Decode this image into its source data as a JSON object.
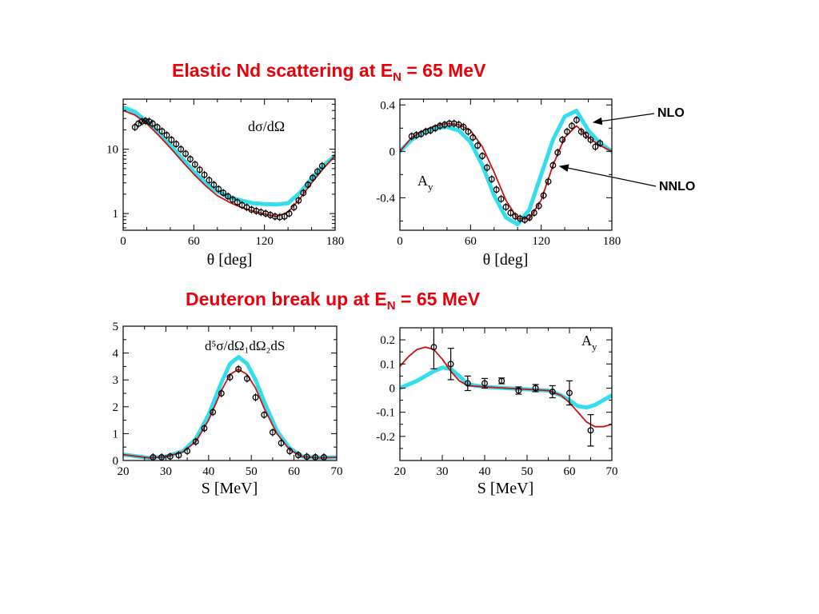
{
  "titles": {
    "elastic": {
      "text": "Elastic Nd scattering at E",
      "sub": "N",
      "rest": " = 65 MeV"
    },
    "breakup": {
      "text": "Deuteron break up at E",
      "sub": "N",
      "rest": " = 65 MeV"
    }
  },
  "annotations": {
    "nlo": "NLO",
    "nnlo": "NNLO"
  },
  "colors": {
    "nlo_band": "#33ddee",
    "nnlo_curve": "#cc1111",
    "data": "#000000",
    "title": "#e8000b"
  },
  "chart_data": [
    {
      "type": "line",
      "panel": "elastic-cross-section",
      "label": "dσ/dΩ",
      "xlabel": "θ  [deg]",
      "xlim": [
        0,
        180
      ],
      "ylim": [
        0.55,
        60
      ],
      "yscale": "log",
      "xticks": [
        0,
        60,
        120,
        180
      ],
      "yticks": [
        1,
        10
      ],
      "series": [
        {
          "name": "NLO",
          "style": "band",
          "x": [
            0,
            10,
            20,
            30,
            40,
            50,
            60,
            70,
            80,
            90,
            100,
            110,
            120,
            130,
            140,
            150,
            160,
            170,
            180
          ],
          "y": [
            45,
            38,
            27,
            18,
            11.5,
            7.2,
            4.5,
            3,
            2.2,
            1.8,
            1.6,
            1.45,
            1.4,
            1.38,
            1.45,
            2.1,
            3.5,
            5.5,
            8
          ]
        },
        {
          "name": "NNLO",
          "style": "line",
          "x": [
            0,
            10,
            20,
            30,
            40,
            50,
            60,
            70,
            80,
            90,
            100,
            110,
            120,
            130,
            140,
            150,
            160,
            170,
            180
          ],
          "y": [
            40,
            34,
            25,
            16.5,
            10.5,
            6.5,
            4.1,
            2.7,
            1.9,
            1.5,
            1.25,
            1.1,
            0.98,
            0.9,
            1.05,
            1.7,
            3,
            5,
            8
          ]
        },
        {
          "name": "data",
          "style": "points",
          "x": [
            10,
            13,
            16,
            19,
            22,
            25,
            29,
            33,
            37,
            41,
            45,
            49,
            53,
            57,
            61,
            65,
            69,
            73,
            77,
            81,
            85,
            89,
            93,
            97,
            101,
            105,
            109,
            113,
            117,
            121,
            125,
            129,
            133,
            137,
            141,
            145,
            149,
            153,
            157,
            161,
            165,
            169
          ],
          "y": [
            22,
            25,
            27,
            27.5,
            27,
            25,
            22,
            19,
            16.5,
            14,
            12,
            10,
            8.5,
            7,
            5.8,
            4.8,
            4,
            3.3,
            2.8,
            2.4,
            2.1,
            1.85,
            1.65,
            1.5,
            1.35,
            1.25,
            1.15,
            1.1,
            1.05,
            1,
            0.95,
            0.9,
            0.88,
            0.9,
            1,
            1.25,
            1.6,
            2.1,
            2.8,
            3.6,
            4.5,
            5.5
          ]
        }
      ]
    },
    {
      "type": "line",
      "panel": "elastic-analyzing-power",
      "label": "A",
      "label_sub": "y",
      "xlabel": "θ  [deg]",
      "xlim": [
        0,
        180
      ],
      "ylim": [
        -0.68,
        0.45
      ],
      "xticks": [
        0,
        60,
        120,
        180
      ],
      "yticks": [
        -0.4,
        0,
        0.4
      ],
      "series": [
        {
          "name": "NLO",
          "style": "band",
          "x": [
            0,
            10,
            20,
            30,
            40,
            50,
            60,
            70,
            80,
            90,
            100,
            110,
            120,
            130,
            140,
            150,
            160,
            170,
            180
          ],
          "y": [
            0,
            0.1,
            0.16,
            0.2,
            0.21,
            0.18,
            0.08,
            -0.12,
            -0.38,
            -0.57,
            -0.63,
            -0.5,
            -0.2,
            0.1,
            0.3,
            0.35,
            0.18,
            0.07,
            0
          ]
        },
        {
          "name": "NNLO",
          "style": "line",
          "x": [
            0,
            10,
            20,
            30,
            40,
            50,
            60,
            70,
            80,
            90,
            100,
            110,
            120,
            130,
            140,
            150,
            160,
            170,
            180
          ],
          "y": [
            0,
            0.12,
            0.18,
            0.22,
            0.24,
            0.23,
            0.18,
            0.04,
            -0.18,
            -0.42,
            -0.58,
            -0.58,
            -0.42,
            -0.12,
            0.12,
            0.22,
            0.12,
            0.05,
            0
          ]
        },
        {
          "name": "data",
          "style": "points",
          "x": [
            10,
            14,
            18,
            22,
            26,
            30,
            34,
            38,
            42,
            46,
            50,
            54,
            58,
            62,
            66,
            70,
            74,
            78,
            82,
            86,
            90,
            94,
            98,
            102,
            106,
            110,
            114,
            118,
            122,
            126,
            130,
            134,
            138,
            142,
            146,
            150,
            154,
            158,
            162,
            166,
            170
          ],
          "y": [
            0.13,
            0.14,
            0.15,
            0.17,
            0.18,
            0.2,
            0.22,
            0.23,
            0.24,
            0.24,
            0.23,
            0.21,
            0.17,
            0.12,
            0.05,
            -0.04,
            -0.14,
            -0.24,
            -0.33,
            -0.41,
            -0.48,
            -0.53,
            -0.56,
            -0.58,
            -0.59,
            -0.57,
            -0.53,
            -0.47,
            -0.38,
            -0.26,
            -0.12,
            -0.01,
            0.1,
            0.17,
            0.22,
            0.27,
            0.17,
            0.14,
            0.1,
            0.04,
            0.07
          ]
        }
      ]
    },
    {
      "type": "line",
      "panel": "breakup-cross-section",
      "label": "d⁵σ/dΩ₁dΩ₂dS",
      "xlabel": "S [MeV]",
      "xlim": [
        20,
        70
      ],
      "ylim": [
        0,
        5
      ],
      "xticks": [
        20,
        30,
        40,
        50,
        60,
        70
      ],
      "yticks": [
        0,
        1,
        2,
        3,
        4,
        5
      ],
      "series": [
        {
          "name": "NLO",
          "style": "band",
          "x": [
            20,
            26,
            30,
            34,
            37,
            40,
            43,
            45,
            47,
            49,
            51,
            53,
            56,
            59,
            62,
            66,
            70
          ],
          "y": [
            0.22,
            0.1,
            0.15,
            0.35,
            0.8,
            1.7,
            2.9,
            3.6,
            3.85,
            3.6,
            3.0,
            2.2,
            1.1,
            0.45,
            0.15,
            0.1,
            0.12
          ]
        },
        {
          "name": "NNLO",
          "style": "line",
          "x": [
            20,
            26,
            30,
            34,
            37,
            40,
            43,
            45,
            47,
            49,
            51,
            53,
            56,
            59,
            62,
            66,
            70
          ],
          "y": [
            0.22,
            0.1,
            0.14,
            0.32,
            0.7,
            1.5,
            2.6,
            3.2,
            3.4,
            3.2,
            2.7,
            1.95,
            1.0,
            0.4,
            0.14,
            0.1,
            0.12
          ]
        },
        {
          "name": "data",
          "style": "points",
          "x": [
            27,
            29,
            31,
            33,
            35,
            37,
            39,
            41,
            43,
            45,
            47,
            49,
            51,
            53,
            55,
            57,
            59,
            61,
            63,
            65,
            67
          ],
          "y": [
            0.12,
            0.12,
            0.15,
            0.2,
            0.35,
            0.7,
            1.2,
            1.8,
            2.5,
            3.1,
            3.4,
            3.05,
            2.35,
            1.7,
            1.05,
            0.65,
            0.35,
            0.2,
            0.14,
            0.12,
            0.12
          ]
        }
      ]
    },
    {
      "type": "line",
      "panel": "breakup-analyzing-power",
      "label": "A",
      "label_sub": "y",
      "xlabel": "S [MeV]",
      "xlim": [
        20,
        70
      ],
      "ylim": [
        -0.3,
        0.25
      ],
      "xticks": [
        20,
        30,
        40,
        50,
        60,
        70
      ],
      "yticks": [
        -0.2,
        -0.1,
        0,
        0.1,
        0.2
      ],
      "series": [
        {
          "name": "NLO",
          "style": "band",
          "x": [
            20,
            24,
            28,
            30,
            32,
            34,
            36,
            40,
            45,
            50,
            55,
            58,
            60,
            62,
            64,
            66,
            68,
            70
          ],
          "y": [
            0,
            0.03,
            0.07,
            0.085,
            0.08,
            0.05,
            0.015,
            0.005,
            0,
            -0.005,
            -0.01,
            -0.03,
            -0.05,
            -0.075,
            -0.08,
            -0.07,
            -0.05,
            -0.03
          ]
        },
        {
          "name": "NNLO",
          "style": "line",
          "x": [
            20,
            22,
            24,
            26,
            28,
            30,
            32,
            34,
            36,
            40,
            45,
            50,
            55,
            58,
            60,
            62,
            64,
            66,
            68,
            70
          ],
          "y": [
            0.09,
            0.13,
            0.16,
            0.17,
            0.16,
            0.12,
            0.07,
            0.03,
            0.01,
            0.005,
            0,
            -0.005,
            -0.01,
            -0.03,
            -0.06,
            -0.1,
            -0.14,
            -0.16,
            -0.16,
            -0.15
          ]
        },
        {
          "name": "data",
          "style": "points",
          "x": [
            28,
            32,
            36,
            40,
            44,
            48,
            52,
            56,
            60,
            65
          ],
          "y": [
            0.17,
            0.1,
            0.02,
            0.02,
            0.03,
            -0.01,
            0,
            -0.015,
            -0.02,
            -0.175
          ],
          "err": [
            0.09,
            0.065,
            0.03,
            0.02,
            0.012,
            0.015,
            0.015,
            0.025,
            0.05,
            0.065
          ]
        }
      ]
    }
  ]
}
